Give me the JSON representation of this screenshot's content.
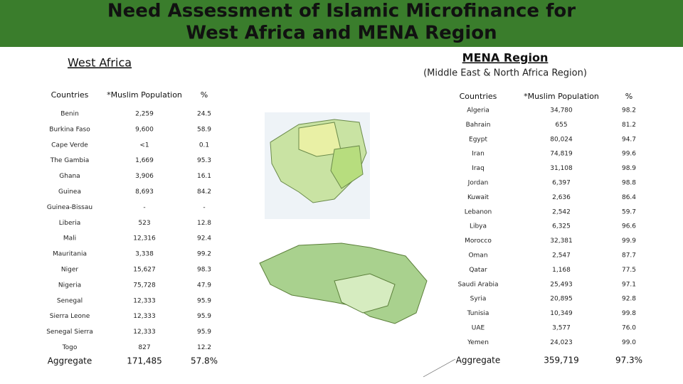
{
  "header": {
    "title_line1": "Need Assessment of Islamic Microfinance for",
    "title_line2": "West Africa and MENA Region"
  },
  "west_africa": {
    "title": "West Africa",
    "columns": [
      "Countries",
      "*Muslim Population",
      "%"
    ],
    "rows": [
      [
        "Benin",
        "2,259",
        "24.5"
      ],
      [
        "Burkina Faso",
        "9,600",
        "58.9"
      ],
      [
        "Cape Verde",
        "<1",
        "0.1"
      ],
      [
        "The Gambia",
        "1,669",
        "95.3"
      ],
      [
        "Ghana",
        "3,906",
        "16.1"
      ],
      [
        "Guinea",
        "8,693",
        "84.2"
      ],
      [
        "Guinea-Bissau",
        "-",
        "-"
      ],
      [
        "Liberia",
        "523",
        "12.8"
      ],
      [
        "Mali",
        "12,316",
        "92.4"
      ],
      [
        "Mauritania",
        "3,338",
        "99.2"
      ],
      [
        "Niger",
        "15,627",
        "98.3"
      ],
      [
        "Nigeria",
        "75,728",
        "47.9"
      ],
      [
        "Senegal",
        "12,333",
        "95.9"
      ],
      [
        "Sierra Leone",
        "12,333",
        "95.9"
      ],
      [
        "Senegal Sierra",
        "12,333",
        "95.9"
      ],
      [
        "Togo",
        "827",
        "12.2"
      ]
    ],
    "aggregate": [
      "Aggregate",
      "171,485",
      "57.8%"
    ]
  },
  "mena": {
    "title": "MENA Region",
    "subtitle": "(Middle East & North Africa Region)",
    "columns": [
      "Countries",
      "*Muslim Population",
      "%"
    ],
    "rows": [
      [
        "Algeria",
        "34,780",
        "98.2"
      ],
      [
        "Bahrain",
        "655",
        "81.2"
      ],
      [
        "Egypt",
        "80,024",
        "94.7"
      ],
      [
        "Iran",
        "74,819",
        "99.6"
      ],
      [
        "Iraq",
        "31,108",
        "98.9"
      ],
      [
        "Jordan",
        "6,397",
        "98.8"
      ],
      [
        "Kuwait",
        "2,636",
        "86.4"
      ],
      [
        "Lebanon",
        "2,542",
        "59.7"
      ],
      [
        "Libya",
        "6,325",
        "96.6"
      ],
      [
        "Morocco",
        "32,381",
        "99.9"
      ],
      [
        "Oman",
        "2,547",
        "87.7"
      ],
      [
        "Qatar",
        "1,168",
        "77.5"
      ],
      [
        "Saudi Arabia",
        "25,493",
        "97.1"
      ],
      [
        "Syria",
        "20,895",
        "92.8"
      ],
      [
        "Tunisia",
        "10,349",
        "99.8"
      ],
      [
        "UAE",
        "3,577",
        "76.0"
      ],
      [
        "Yemen",
        "24,023",
        "99.0"
      ]
    ],
    "aggregate": [
      "Aggregate",
      "359,719",
      "97.3%"
    ]
  }
}
